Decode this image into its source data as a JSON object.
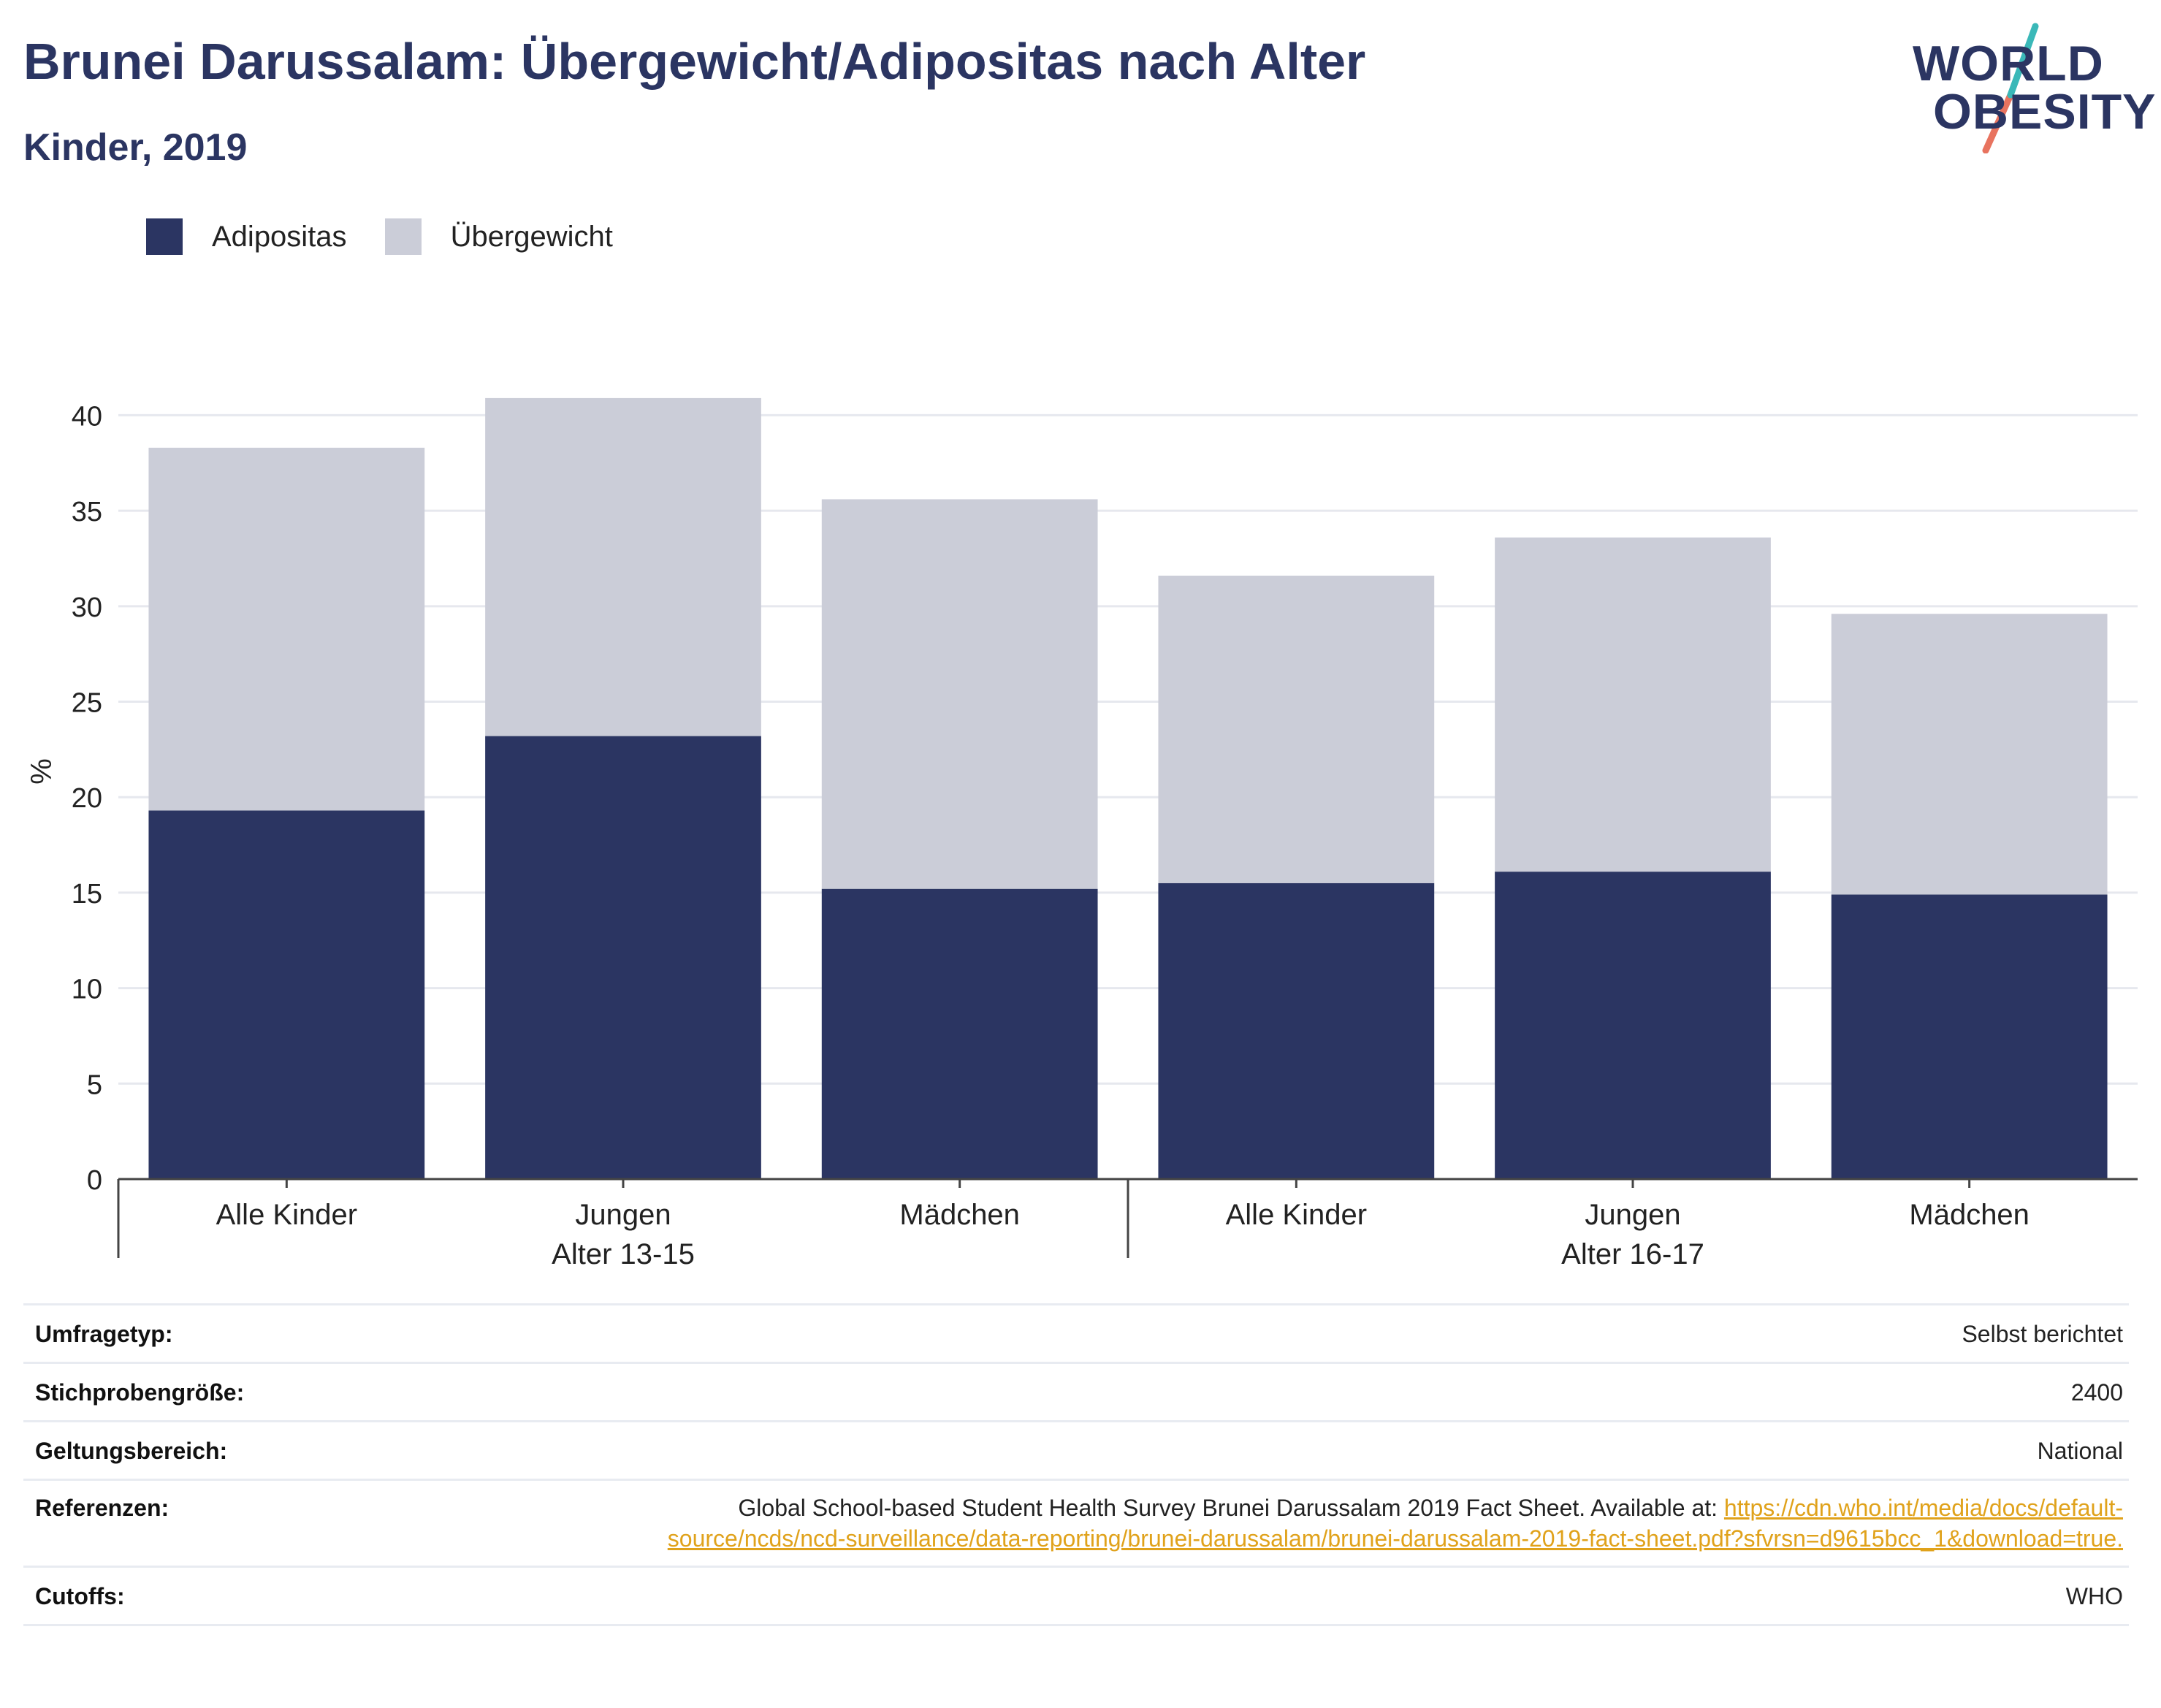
{
  "header": {
    "title": "Brunei Darussalam: Übergewicht/Adipositas nach Alter",
    "subtitle": "Kinder, 2019"
  },
  "logo": {
    "line1": "WORLD",
    "line2": "OBESITY",
    "color_text": "#2b3562",
    "color_slash_top": "#3ab8b8",
    "color_slash_bottom": "#e8735f"
  },
  "legend": [
    {
      "label": "Adipositas",
      "color": "#2b3562"
    },
    {
      "label": "Übergewicht",
      "color": "#cbcdd8"
    }
  ],
  "chart_data": {
    "type": "bar",
    "stacked": true,
    "ylabel": "%",
    "ylim": [
      0,
      43
    ],
    "yticks": [
      0,
      5,
      10,
      15,
      20,
      25,
      30,
      35,
      40
    ],
    "grid": true,
    "legend_position": "top-left",
    "groups": [
      {
        "label": "Alter 13-15",
        "categories": [
          "Alle Kinder",
          "Jungen",
          "Mädchen"
        ]
      },
      {
        "label": "Alter 16-17",
        "categories": [
          "Alle Kinder",
          "Jungen",
          "Mädchen"
        ]
      }
    ],
    "categories": [
      "Alle Kinder",
      "Jungen",
      "Mädchen",
      "Alle Kinder",
      "Jungen",
      "Mädchen"
    ],
    "series": [
      {
        "name": "Adipositas",
        "color": "#2b3562",
        "values": [
          19.3,
          23.2,
          15.2,
          15.5,
          16.1,
          14.9
        ]
      },
      {
        "name": "Übergewicht",
        "color": "#cbcdd8",
        "values": [
          19.0,
          17.7,
          20.4,
          16.1,
          17.5,
          14.7
        ]
      }
    ]
  },
  "info": {
    "survey_type": {
      "label": "Umfragetyp:",
      "value": "Selbst berichtet"
    },
    "sample_size": {
      "label": "Stichprobengröße:",
      "value": "2400"
    },
    "scope": {
      "label": "Geltungsbereich:",
      "value": "National"
    },
    "references": {
      "label": "Referenzen:",
      "text": "Global School-based Student Health Survey Brunei Darussalam 2019 Fact Sheet. Available at: ",
      "link": "https://cdn.who.int/media/docs/default-source/ncds/ncd-surveillance/data-reporting/brunei-darussalam/brunei-darussalam-2019-fact-sheet.pdf?sfvrsn=d9615bcc_1&download=true."
    },
    "cutoffs": {
      "label": "Cutoffs:",
      "value": "WHO"
    }
  }
}
